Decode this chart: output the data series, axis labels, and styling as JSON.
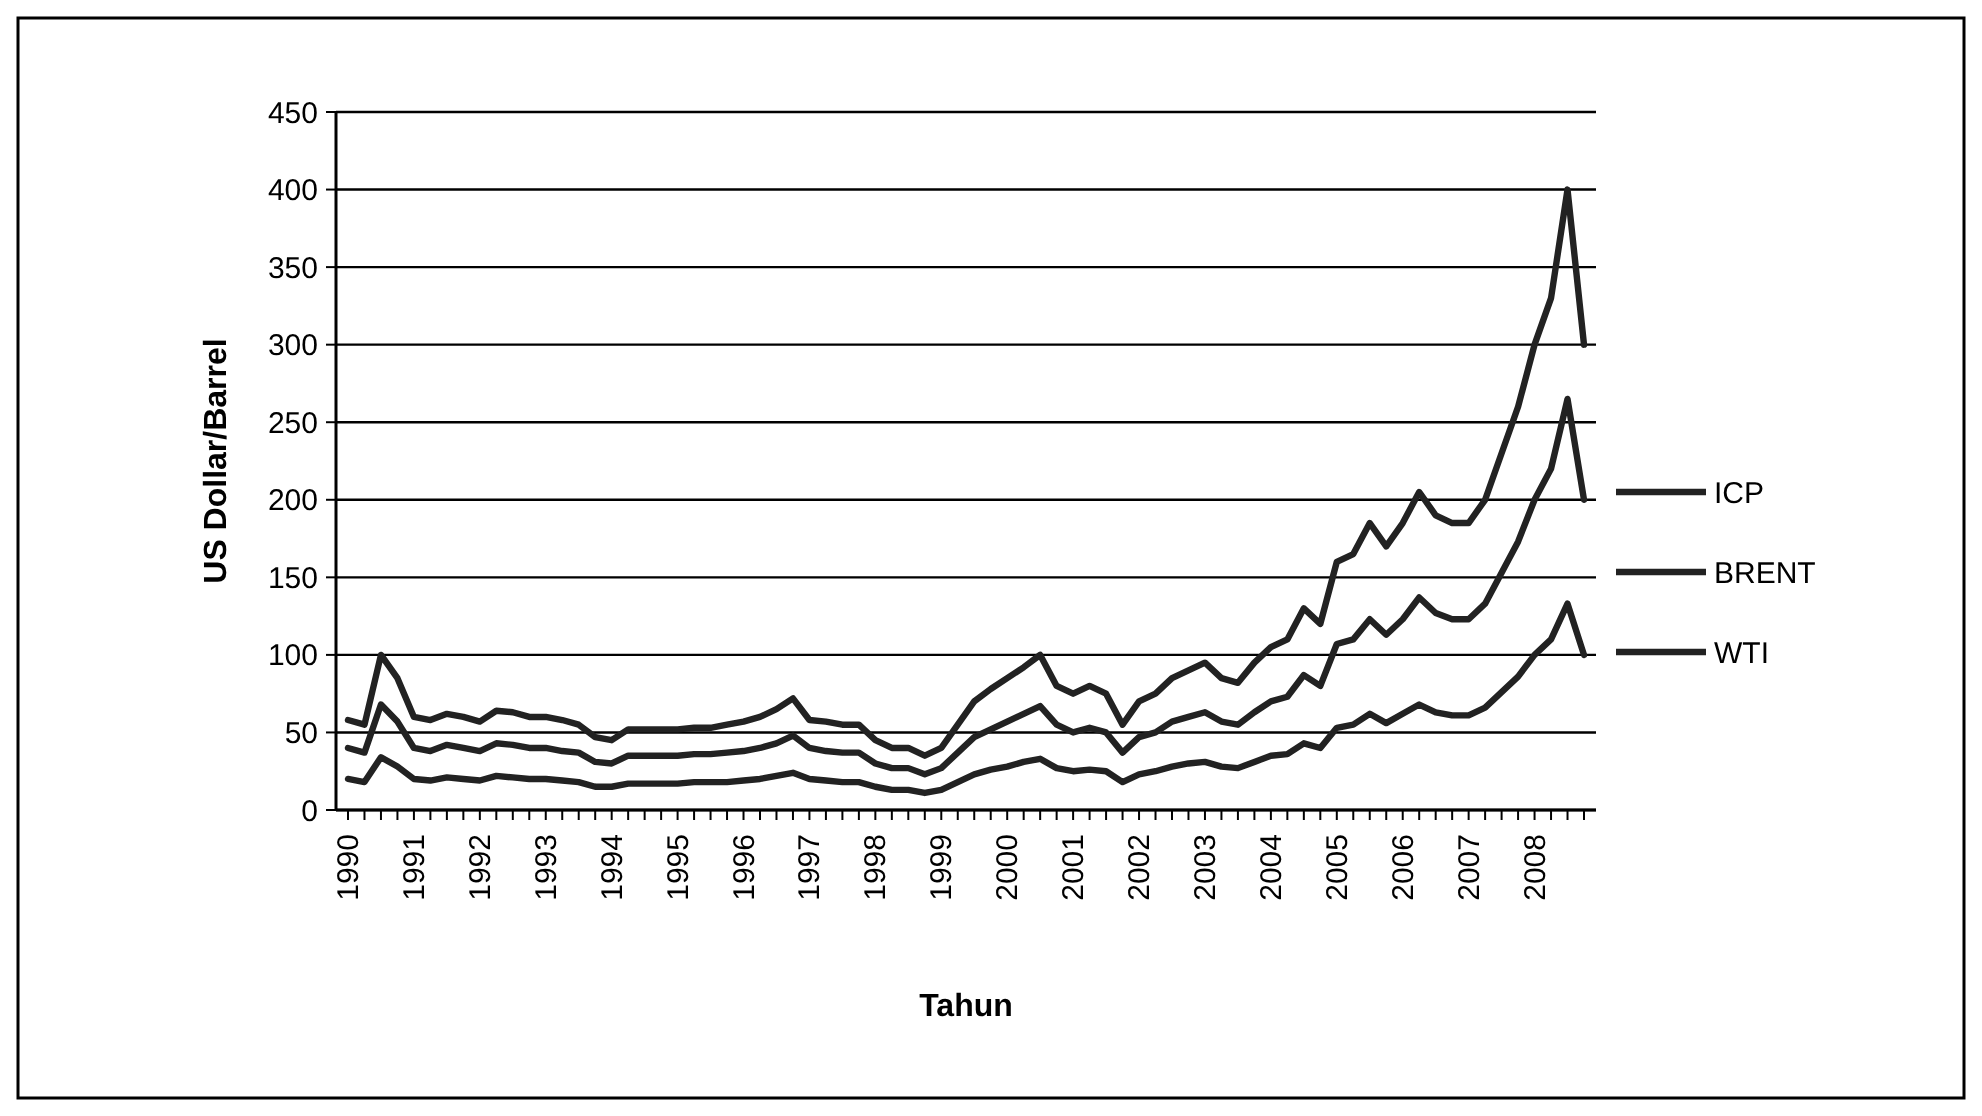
{
  "chart_data": {
    "type": "line",
    "xlabel": "Tahun",
    "ylabel": "US Dollar/Barrel",
    "categories": [
      "1990",
      null,
      null,
      null,
      "1991",
      null,
      null,
      null,
      "1992",
      null,
      null,
      null,
      "1993",
      null,
      null,
      null,
      "1994",
      null,
      null,
      null,
      "1995",
      null,
      null,
      null,
      "1996",
      null,
      null,
      null,
      "1997",
      null,
      null,
      null,
      "1998",
      null,
      null,
      null,
      "1999",
      null,
      null,
      null,
      "2000",
      null,
      null,
      null,
      "2001",
      null,
      null,
      null,
      "2002",
      null,
      null,
      null,
      "2003",
      null,
      null,
      null,
      "2004",
      null,
      null,
      null,
      "2005",
      null,
      null,
      null,
      "2006",
      null,
      null,
      null,
      "2007",
      null,
      null,
      null,
      "2008",
      null,
      null,
      null
    ],
    "series": [
      {
        "name": "ICP",
        "color": "#222222",
        "values": [
          58,
          55,
          100,
          85,
          60,
          58,
          62,
          60,
          57,
          64,
          63,
          60,
          60,
          58,
          55,
          47,
          45,
          52,
          52,
          52,
          52,
          53,
          53,
          55,
          57,
          60,
          65,
          72,
          58,
          57,
          55,
          55,
          45,
          40,
          40,
          35,
          40,
          55,
          70,
          78,
          85,
          92,
          100,
          80,
          75,
          80,
          75,
          55,
          70,
          75,
          85,
          90,
          95,
          85,
          82,
          95,
          105,
          110,
          130,
          120,
          160,
          165,
          185,
          170,
          185,
          205,
          190,
          185,
          185,
          200,
          230,
          260,
          300,
          330,
          400,
          300
        ]
      },
      {
        "name": "BRENT",
        "color": "#222222",
        "values": [
          40,
          37,
          68,
          57,
          40,
          38,
          42,
          40,
          38,
          43,
          42,
          40,
          40,
          38,
          37,
          31,
          30,
          35,
          35,
          35,
          35,
          36,
          36,
          37,
          38,
          40,
          43,
          48,
          40,
          38,
          37,
          37,
          30,
          27,
          27,
          23,
          27,
          37,
          47,
          52,
          57,
          62,
          67,
          55,
          50,
          53,
          50,
          37,
          47,
          50,
          57,
          60,
          63,
          57,
          55,
          63,
          70,
          73,
          87,
          80,
          107,
          110,
          123,
          113,
          123,
          137,
          127,
          123,
          123,
          133,
          153,
          173,
          200,
          220,
          265,
          200
        ]
      },
      {
        "name": "WTI",
        "color": "#222222",
        "values": [
          20,
          18,
          34,
          28,
          20,
          19,
          21,
          20,
          19,
          22,
          21,
          20,
          20,
          19,
          18,
          15,
          15,
          17,
          17,
          17,
          17,
          18,
          18,
          18,
          19,
          20,
          22,
          24,
          20,
          19,
          18,
          18,
          15,
          13,
          13,
          11,
          13,
          18,
          23,
          26,
          28,
          31,
          33,
          27,
          25,
          26,
          25,
          18,
          23,
          25,
          28,
          30,
          31,
          28,
          27,
          31,
          35,
          36,
          43,
          40,
          53,
          55,
          62,
          56,
          62,
          68,
          63,
          61,
          61,
          66,
          76,
          86,
          100,
          110,
          133,
          100
        ]
      }
    ],
    "ylim": [
      0,
      450
    ],
    "yticks": [
      0,
      50,
      100,
      150,
      200,
      250,
      300,
      350,
      400,
      450
    ],
    "grid": "y",
    "legend": "right",
    "marker": "none",
    "line_style": "solid"
  }
}
